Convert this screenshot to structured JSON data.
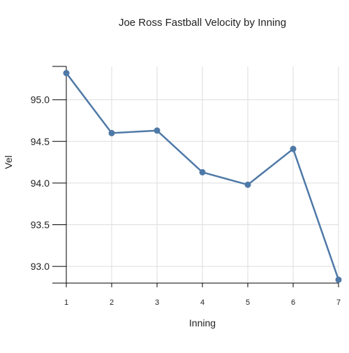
{
  "chart_data": {
    "type": "line",
    "title": "Joe Ross Fastball Velocity by Inning",
    "xlabel": "Inning",
    "ylabel": "Vel",
    "x": [
      1,
      2,
      3,
      4,
      5,
      6,
      7
    ],
    "series": [
      {
        "values": [
          95.32,
          94.6,
          94.63,
          94.13,
          93.98,
          94.41,
          92.84
        ],
        "color": "#4e79a7"
      }
    ],
    "xlim": [
      1,
      7
    ],
    "ylim": [
      92.8,
      95.4
    ],
    "x_ticks": [
      "1",
      "2",
      "3",
      "4",
      "5",
      "6",
      "7"
    ],
    "y_ticks": [
      "93.0",
      "93.5",
      "94.0",
      "94.5",
      "95.0"
    ],
    "grid": true,
    "legend": "none"
  }
}
